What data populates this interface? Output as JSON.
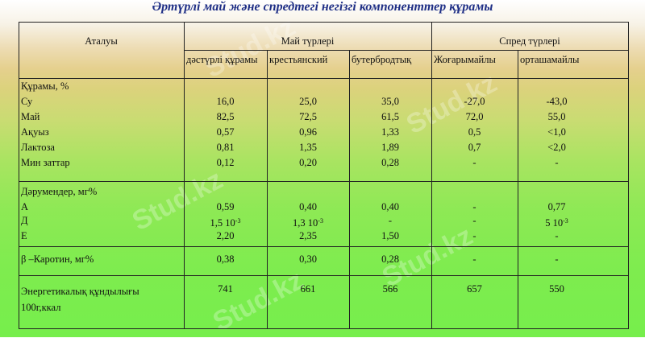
{
  "title": "Әртүрлі май және спредтегі негізгі компоненттер құрамы",
  "watermark": "Stud.kz",
  "header": {
    "name_col": "Аталуы",
    "butter_group": "Май түрлері",
    "spread_group": "Спред түрлері",
    "cols": [
      "дәстүрлі құрамы",
      "крестьянский",
      "бутербродтық",
      "Жоғарымайлы",
      "орташамайлы"
    ]
  },
  "sections": [
    {
      "heading": "Құрамы, %",
      "rows": [
        {
          "label": "Су",
          "values": [
            "16,0",
            "25,0",
            "35,0",
            "-27,0",
            "-43,0"
          ]
        },
        {
          "label": "Май",
          "values": [
            "82,5",
            "72,5",
            "61,5",
            "72,0",
            "55,0"
          ]
        },
        {
          "label": "Ақуыз",
          "values": [
            "0,57",
            "0,96",
            "1,33",
            "0,5",
            "<1,0"
          ]
        },
        {
          "label": "Лактоза",
          "values": [
            "0,81",
            "1,35",
            "1,89",
            "0,7",
            "<2,0"
          ]
        },
        {
          "label": "Мин заттар",
          "values": [
            "0,12",
            "0,20",
            "0,28",
            "-",
            "-"
          ]
        }
      ]
    },
    {
      "heading": "Дәрумендер, мг%",
      "rows": [
        {
          "label": "А",
          "values": [
            "0,59",
            "0,40",
            "0,40",
            "-",
            "0,77"
          ]
        },
        {
          "label": "Д",
          "values": [
            "1,5  10",
            "1,3  10",
            "-",
            "-",
            "5  10"
          ],
          "exp": "-3"
        },
        {
          "label": "Е",
          "values": [
            "2,20",
            "2,35",
            "1,50",
            "-",
            "-"
          ]
        }
      ]
    },
    {
      "heading": "",
      "rows": [
        {
          "label": "β –Каротин, мг%",
          "values": [
            "0,38",
            "0,30",
            "0,28",
            "-",
            "-"
          ]
        }
      ]
    },
    {
      "heading": "",
      "rows": [
        {
          "label": "Энергетикалық құндылығы 100г,ккал",
          "values": [
            "741",
            "661",
            "566",
            "657",
            "550"
          ]
        }
      ]
    }
  ]
}
